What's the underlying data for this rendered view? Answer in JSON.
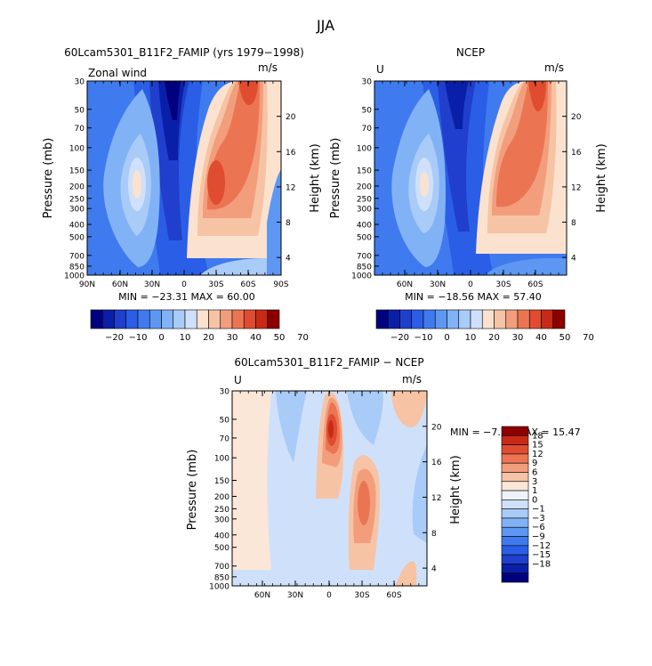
{
  "figure": {
    "title": "JJA",
    "colors": {
      "full": [
        "#00007f",
        "#0a1fa8",
        "#1f3fcc",
        "#2a5ee6",
        "#3f7bef",
        "#5d97f2",
        "#82b2f6",
        "#a9cbf8",
        "#cfe1fa",
        "#fbe2cf",
        "#f7c3a5",
        "#f29e7c",
        "#eb7553",
        "#e04c30",
        "#c72b17",
        "#8c0000"
      ],
      "diff": [
        "#00007f",
        "#0a1fa8",
        "#1f3fcc",
        "#2a5ee6",
        "#3f7bef",
        "#5d97f2",
        "#82b2f6",
        "#a9cbf8",
        "#cfe1fa",
        "#eef3fb",
        "#fbe7d8",
        "#f7c3a5",
        "#f29e7c",
        "#eb7553",
        "#e04c30",
        "#c72b17",
        "#8c0000"
      ]
    }
  },
  "chart_data": [
    {
      "type": "heatmap",
      "panel": "model",
      "title": "60Lcam5301_B11F2_FAMIP (yrs 1979−1998)",
      "inner_label": "Zonal wind",
      "units": "m/s",
      "ylabel": "Pressure (mb)",
      "ylabel_right": "Height (km)",
      "x_ticks": [
        "90N",
        "60N",
        "30N",
        "0",
        "30S",
        "60S",
        "90S"
      ],
      "y_ticks": [
        "30",
        "50",
        "70",
        "100",
        "150",
        "200",
        "250",
        "300",
        "400",
        "500",
        "700",
        "850",
        "1000"
      ],
      "y_ticks_right": [
        "20",
        "16",
        "12",
        "8",
        "4"
      ],
      "stats": "MIN = −23.31   MAX = 60.00",
      "min": -23.31,
      "max": 60.0,
      "colorbar_labels": [
        "−20",
        "−10",
        "0",
        "10",
        "20",
        "30",
        "40",
        "50",
        "70"
      ]
    },
    {
      "type": "heatmap",
      "panel": "obs",
      "title": "NCEP",
      "inner_label": "U",
      "units": "m/s",
      "ylabel": "Pressure (mb)",
      "ylabel_right": "Height (km)",
      "x_ticks": [
        "60N",
        "30N",
        "0",
        "30S",
        "60S"
      ],
      "y_ticks": [
        "30",
        "50",
        "70",
        "100",
        "150",
        "200",
        "250",
        "300",
        "400",
        "500",
        "700",
        "850",
        "1000"
      ],
      "y_ticks_right": [
        "20",
        "16",
        "12",
        "8",
        "4"
      ],
      "stats": "MIN = −18.56   MAX =  57.40",
      "min": -18.56,
      "max": 57.4,
      "colorbar_labels": [
        "−20",
        "−10",
        "0",
        "10",
        "20",
        "30",
        "40",
        "50",
        "70"
      ]
    },
    {
      "type": "heatmap",
      "panel": "diff",
      "title": "60Lcam5301_B11F2_FAMIP − NCEP",
      "inner_label": "U",
      "units": "m/s",
      "ylabel": "Pressure (mb)",
      "ylabel_right": "Height (km)",
      "x_ticks": [
        "60N",
        "30N",
        "0",
        "30S",
        "60S"
      ],
      "y_ticks": [
        "30",
        "50",
        "70",
        "100",
        "150",
        "200",
        "250",
        "300",
        "400",
        "500",
        "700",
        "850",
        "1000"
      ],
      "y_ticks_right": [
        "20",
        "16",
        "12",
        "8",
        "4"
      ],
      "stats": "MIN =  −7.53   MAX =  15.47",
      "min": -7.53,
      "max": 15.47,
      "colorbar_labels": [
        "18",
        "15",
        "12",
        "9",
        "6",
        "3",
        "1",
        "0",
        "−1",
        "−3",
        "−6",
        "−9",
        "−12",
        "−15",
        "−18"
      ]
    }
  ]
}
